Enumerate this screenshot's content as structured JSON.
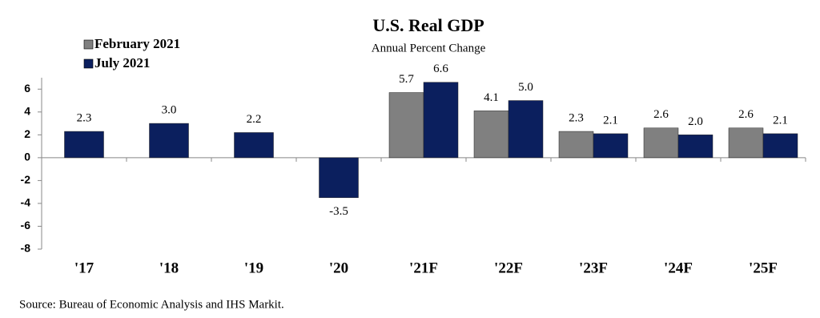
{
  "chart_data": {
    "type": "bar",
    "title": "U.S. Real GDP",
    "subtitle": "Annual Percent Change",
    "categories": [
      "'17",
      "'18",
      "'19",
      "'20",
      "'21F",
      "'22F",
      "'23F",
      "'24F",
      "'25F"
    ],
    "series": [
      {
        "name": "February 2021",
        "color": "#808080",
        "values": [
          null,
          null,
          null,
          null,
          5.7,
          4.1,
          2.3,
          2.6,
          2.6
        ],
        "value_labels": [
          null,
          null,
          null,
          null,
          "5.7",
          "4.1",
          "2.3",
          "2.6",
          "2.6"
        ]
      },
      {
        "name": "July 2021",
        "color": "#0b1f5e",
        "values": [
          2.3,
          3.0,
          2.2,
          -3.5,
          6.6,
          5.0,
          2.1,
          2.0,
          2.1
        ],
        "value_labels": [
          "2.3",
          "3.0",
          "2.2",
          "-3.5",
          "6.6",
          "5.0",
          "2.1",
          "2.0",
          "2.1"
        ]
      }
    ],
    "ylim": [
      -8,
      7
    ],
    "yticks": [
      6,
      4,
      2,
      0,
      -2,
      -4,
      -6,
      -8
    ],
    "legend": "top-left",
    "source": "Source:  Bureau of Economic Analysis and IHS Markit."
  }
}
